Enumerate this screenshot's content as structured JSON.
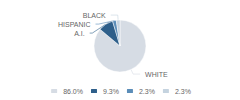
{
  "chart_data": {
    "type": "pie",
    "categories": [
      "WHITE",
      "A.I.",
      "HISPANIC",
      "BLACK"
    ],
    "values": [
      86.0,
      9.3,
      2.3,
      2.3
    ],
    "value_labels": [
      "86.0%",
      "9.3%",
      "2.3%",
      "2.3%"
    ],
    "colors": [
      "#d6dce4",
      "#2e5f8a",
      "#5b8db8",
      "#c5d3df"
    ],
    "legend": "bottom"
  }
}
